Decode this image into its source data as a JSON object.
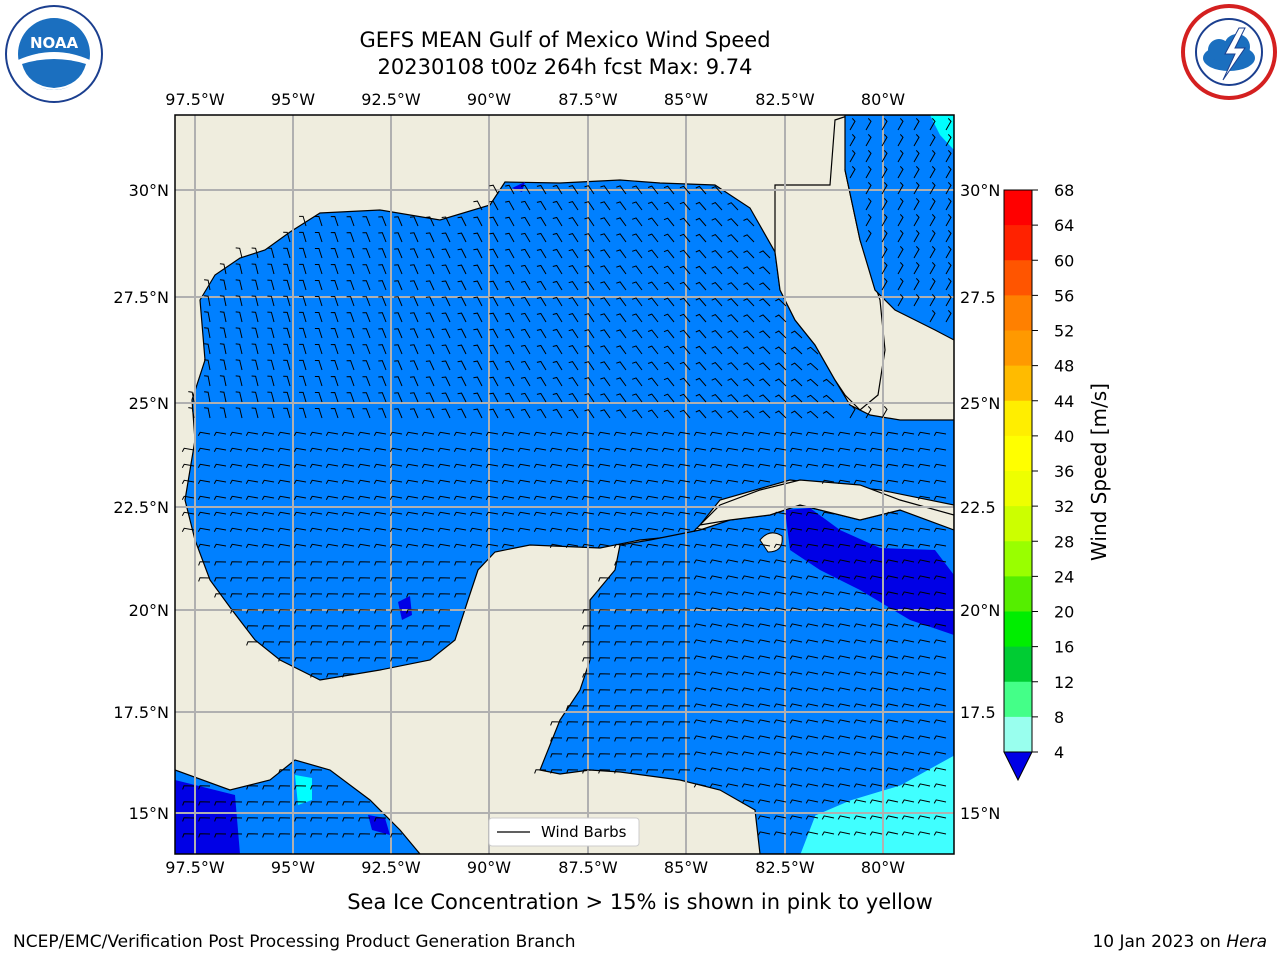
{
  "title": {
    "line1": "GEFS MEAN Gulf of Mexico Wind Speed",
    "line2": "20230108 t00z 264h fcst   Max: 9.74"
  },
  "map": {
    "lon_labels": [
      "97.5°W",
      "95°W",
      "92.5°W",
      "90°W",
      "87.5°W",
      "85°W",
      "82.5°W",
      "80°W"
    ],
    "lat_labels_left": [
      "30°N",
      "27.5°N",
      "25°N",
      "22.5°N",
      "20°N",
      "17.5°N",
      "15°N"
    ],
    "lat_labels_right": [
      "30°N",
      "27.5",
      "25°N",
      "22.5",
      "20°N",
      "17.5",
      "15°N"
    ],
    "legend_label": "Wind Barbs",
    "colors": {
      "land": "#efedde",
      "wind_4_8": "#0080ff",
      "wind_below_4": "#0000e6",
      "wind_8_12": "#00ffff",
      "wind_12_16": "#40ffff",
      "grid": "#b0b0b0"
    },
    "icons": [
      "noaa-logo",
      "nws-logo"
    ]
  },
  "colorbar": {
    "label": "Wind Speed [m/s]",
    "ticks": [
      "68",
      "64",
      "60",
      "56",
      "52",
      "48",
      "44",
      "40",
      "36",
      "32",
      "28",
      "24",
      "20",
      "16",
      "12",
      "8",
      "4"
    ],
    "colors": [
      "#ff0000",
      "#ff2200",
      "#ff5500",
      "#ff8000",
      "#ff9900",
      "#ffbb00",
      "#ffee00",
      "#ffff00",
      "#eeff00",
      "#ccff00",
      "#99ff00",
      "#55ee00",
      "#00ee00",
      "#00cc33",
      "#44ff88",
      "#99ffee",
      "#40ffff",
      "#00ffff",
      "#0080ff",
      "#0000e6"
    ]
  },
  "footnote": "Sea Ice Concentration > 15% is shown in pink to yellow",
  "credit": "NCEP/EMC/Verification Post Processing Product Generation Branch",
  "datestamp": {
    "prefix": "10 Jan 2023 on ",
    "host": "Hera"
  }
}
